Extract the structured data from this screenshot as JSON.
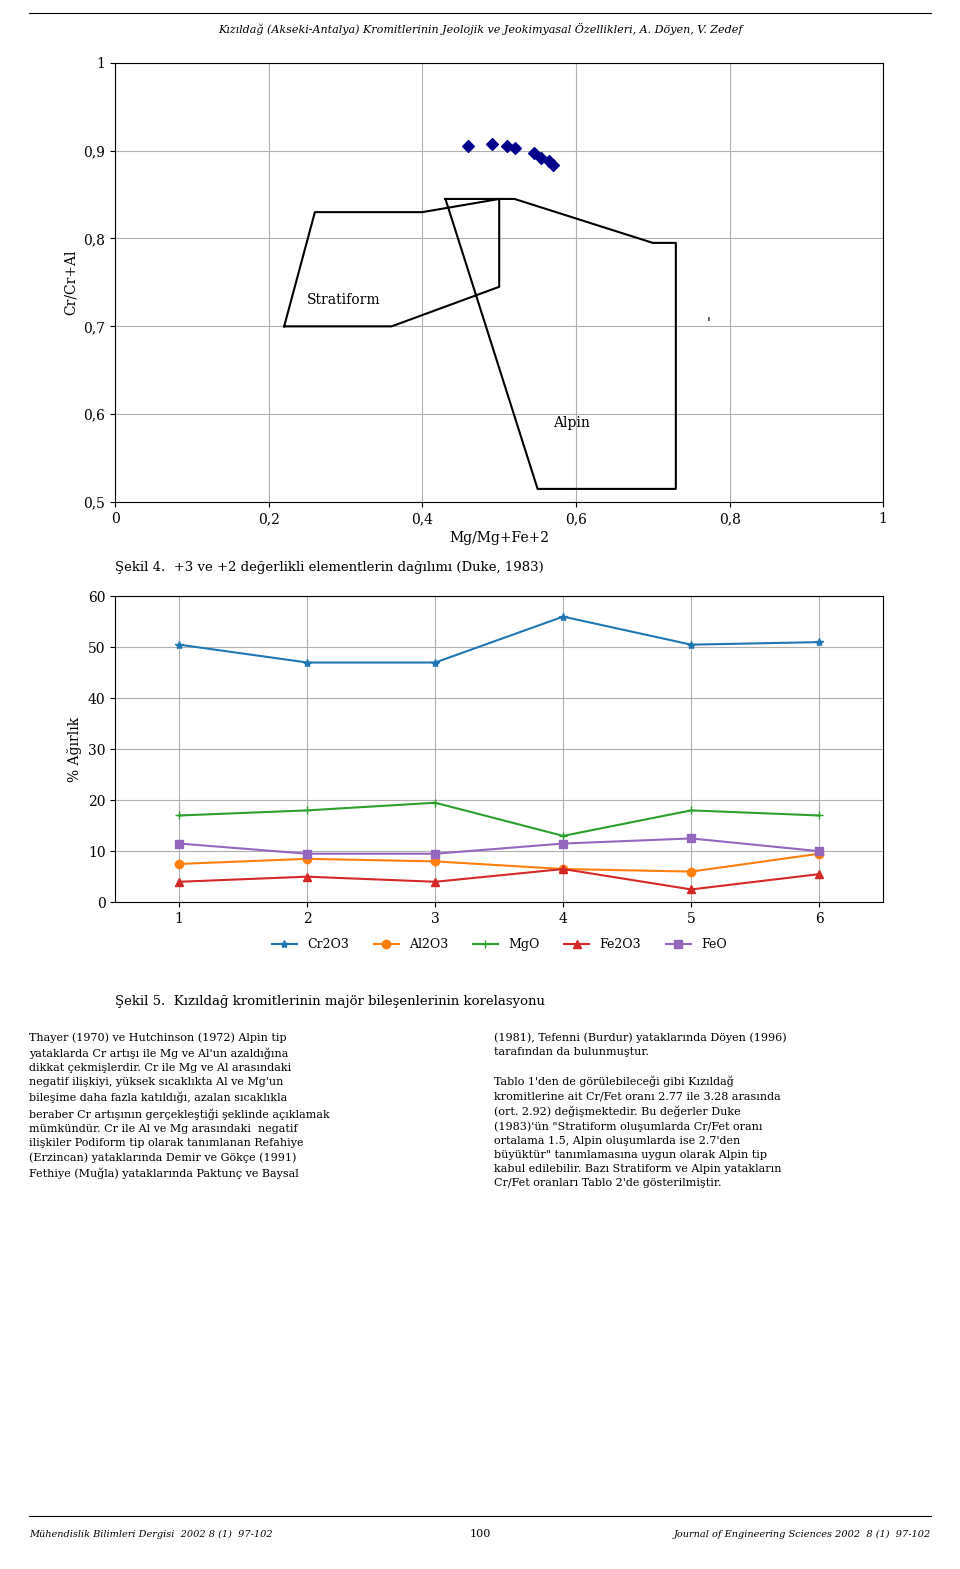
{
  "annotations": [
    "Kızıldağ (Akseki-Antalya) Kromitlerinin Jeolojik ve Jeokimyasal Özellikleri, A. Döyen, V. Zedef",
    "Thayer (1970) ve Hutchinson (1972) Alpin tip\nyataklarda Cr artışı ile Mg ve Al'un azaldığına\ndikkat çekmişlerdir. Cr ile Mg ve Al arasındaki\nnegatif ilişkiyi, yüksek sıcaklıkta Al ve Mg'un\nbileşime daha fazla katıldığı, azalan sıcaklıkla\nberaber Cr artışının gerçekleştiği şeklinde açıklamak\nmümkündür. Cr ile Al ve Mg arasındaki  negatif\nilişkiler Podiform tip olarak tanımlanan Refahiye\n(Erzincan) yataklarında Demir ve Gökçe (1991)\nFethiye (Muğla) yataklarında Paktunç ve Baysal",
    "(1981), Tefenni (Burdur) yataklarında Döyen (1996)\ntarafından da bulunmuştur.\n\nTablo 1'den de görülebileceği gibi Kızıldağ\nkromitlerine ait Cr/Fet oranı 2.77 ile 3.28 arasında\n(ort. 2.92) değişmektedir. Bu değerler Duke\n(1983)'ün \"Stratiform oluşumlarda Cr/Fet oranı\nortalama 1.5, Alpin oluşumlarda ise 2.7'den\nbüyüktür\" tanımlamasına uygun olarak Alpin tip\nkabul edilebilir. Bazı Stratiform ve Alpin yatakların\nCr/Fet oranları Tablo 2'de gösterilmiştir.",
    "Mühendislik Bilimleri Dergisi  2002 8 (1)  97-102",
    "100",
    "Journal of Engineering Sciences 2002  8 (1)  97-102"
  ],
  "chart_data": [
    {
      "type": "scatter",
      "title": "Şekil 4.  +3 ve +2 değerlikli elementlerin dağılımı (Duke, 1983)",
      "x_label": "Mg/Mg+Fe+2",
      "y_label": "Cr/Cr+Al",
      "xlim": [
        0,
        1
      ],
      "ylim": [
        0.5,
        1.0
      ],
      "xticks": [
        0,
        {
          "value": 0.2,
          "label": "0,2"
        },
        {
          "value": 0.4,
          "label": "0,4"
        },
        {
          "value": 0.6,
          "label": "0,6"
        },
        {
          "value": 0.8,
          "label": "0,8"
        },
        1
      ],
      "yticks": [
        {
          "value": 0.5,
          "label": "0,5"
        },
        {
          "value": 0.6,
          "label": "0,6"
        },
        {
          "value": 0.7,
          "label": "0,7"
        },
        {
          "value": 0.8,
          "label": "0,8"
        },
        {
          "value": 0.9,
          "label": "0,9"
        },
        1
      ],
      "grid": true,
      "series": [
        {
          "type": "line",
          "color": "black",
          "x": [
            0.22,
            0.26,
            0.4,
            0.5,
            0.5,
            0.36,
            0.22
          ],
          "values": [
            0.7,
            0.83,
            0.83,
            0.845,
            0.745,
            0.7,
            0.7
          ]
        },
        {
          "type": "line",
          "color": "black",
          "x": [
            0.43,
            0.52,
            0.7,
            0.73,
            0.73,
            0.55,
            0.43
          ],
          "values": [
            0.845,
            0.845,
            0.795,
            0.795,
            0.515,
            0.515,
            0.845
          ]
        },
        {
          "type": "scatter",
          "color": "#00008B",
          "marker": "diamond",
          "x": [
            0.46,
            0.49,
            0.51,
            0.52,
            0.545,
            0.555,
            0.565,
            0.57
          ],
          "values": [
            0.905,
            0.908,
            0.905,
            0.903,
            0.897,
            0.892,
            0.888,
            0.884
          ]
        }
      ],
      "annotations": [
        {
          "text": "Stratiform",
          "x": 0.25,
          "y": 0.725
        },
        {
          "text": "Alpin",
          "x": 0.57,
          "y": 0.585
        },
        {
          "text": "'",
          "x": 0.77,
          "y": 0.698
        }
      ]
    },
    {
      "type": "line",
      "title": "Şekil 5.  Kızıldağ kromitlerinin majör bileşenlerinin korelasyonu",
      "y_label": "% Ağırlık",
      "xlim": [
        0.5,
        6.5
      ],
      "ylim": [
        0,
        60
      ],
      "xticks": [
        1,
        2,
        3,
        4,
        5,
        6
      ],
      "yticks": [
        0,
        10,
        20,
        30,
        40,
        50,
        60
      ],
      "grid": true,
      "legend": "upper center",
      "x": [
        1,
        2,
        3,
        4,
        5,
        6
      ],
      "series": [
        {
          "name": "Cr2O3",
          "marker": "star",
          "values": [
            50.5,
            47.0,
            47.0,
            56.0,
            50.5,
            51.0
          ]
        },
        {
          "name": "Al2O3",
          "marker": "circle",
          "values": [
            7.5,
            8.5,
            8.0,
            6.5,
            6.0,
            9.5
          ]
        },
        {
          "name": "MgO",
          "marker": "plus",
          "values": [
            17.0,
            18.0,
            19.5,
            13.0,
            18.0,
            17.0
          ]
        },
        {
          "name": "Fe2O3",
          "marker": "triangle",
          "values": [
            4.0,
            5.0,
            4.0,
            6.5,
            2.5,
            5.5
          ]
        },
        {
          "name": "FeO",
          "marker": "square",
          "values": [
            11.5,
            9.5,
            9.5,
            11.5,
            12.5,
            10.0
          ]
        }
      ]
    }
  ]
}
